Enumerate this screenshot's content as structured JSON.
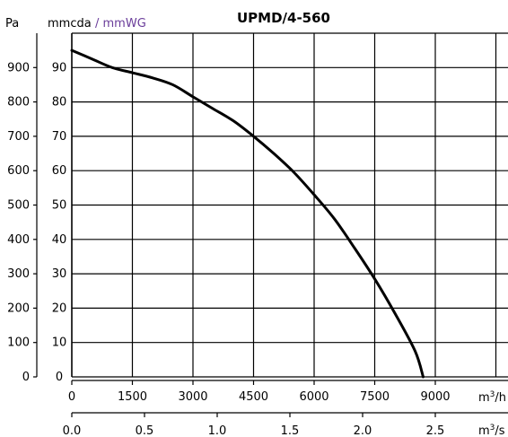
{
  "chart_data": {
    "type": "line",
    "title": "UPMD/4-560",
    "colors": {
      "curve": "#000000",
      "grid": "#000000",
      "accent_label": "#6a3d9a"
    },
    "axes": {
      "y_left_pa": {
        "label": "Pa",
        "ticks": [
          0,
          100,
          200,
          300,
          400,
          500,
          600,
          700,
          800,
          900
        ],
        "ylim": [
          0,
          1000
        ]
      },
      "y_mmcda": {
        "label": "mmcda",
        "label_extra": "/ mmWG",
        "ticks": [
          0,
          10,
          20,
          30,
          40,
          50,
          60,
          70,
          80,
          90
        ],
        "ylim": [
          0,
          100
        ]
      },
      "x_m3h": {
        "label_base": "m",
        "label_exp": "3",
        "label_tail": "/h",
        "ticks": [
          0,
          1500,
          3000,
          4500,
          6000,
          7500,
          9000
        ],
        "xlim": [
          0,
          10800
        ]
      },
      "x_m3s": {
        "label_base": "m",
        "label_exp": "3",
        "label_tail": "/s",
        "ticks": [
          "0.0",
          "0.5",
          "1.0",
          "1.5",
          "2.0",
          "2.5"
        ],
        "xlim": [
          0,
          3.0
        ]
      }
    },
    "grid": true,
    "series": [
      {
        "x_m3h": [
          0,
          500,
          1000,
          1500,
          2000,
          2500,
          3000,
          3500,
          4000,
          4500,
          5000,
          5500,
          6000,
          6500,
          7000,
          7500,
          8000,
          8500,
          8700
        ],
        "y_pa": [
          950,
          925,
          900,
          885,
          870,
          850,
          815,
          780,
          745,
          700,
          650,
          595,
          530,
          460,
          375,
          285,
          185,
          75,
          0
        ]
      }
    ]
  }
}
